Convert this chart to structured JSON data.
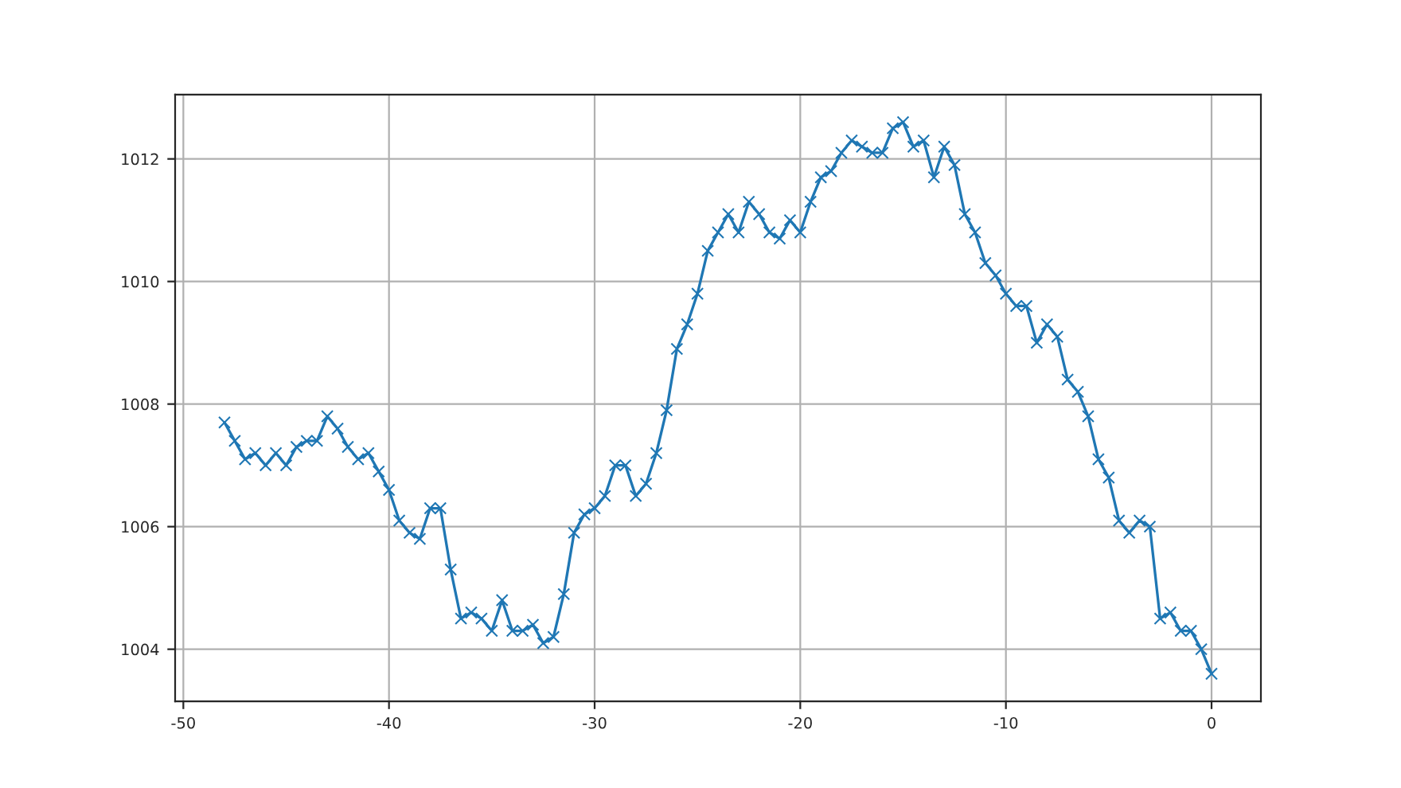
{
  "chart_data": {
    "type": "line",
    "x": [
      -48,
      -47.5,
      -47,
      -46.5,
      -46,
      -45.5,
      -45,
      -44.5,
      -44,
      -43.5,
      -43,
      -42.5,
      -42,
      -41.5,
      -41,
      -40.5,
      -40,
      -39.5,
      -39,
      -38.5,
      -38,
      -37.5,
      -37,
      -36.5,
      -36,
      -35.5,
      -35,
      -34.5,
      -34,
      -33.5,
      -33,
      -32.5,
      -32,
      -31.5,
      -31,
      -30.5,
      -30,
      -29.5,
      -29,
      -28.5,
      -28,
      -27.5,
      -27,
      -26.5,
      -26,
      -25.5,
      -25,
      -24.5,
      -24,
      -23.5,
      -23,
      -22.5,
      -22,
      -21.5,
      -21,
      -20.5,
      -20,
      -19.5,
      -19,
      -18.5,
      -18,
      -17.5,
      -17,
      -16.5,
      -16,
      -15.5,
      -15,
      -14.5,
      -14,
      -13.5,
      -13,
      -12.5,
      -12,
      -11.5,
      -11,
      -10.5,
      -10,
      -9.5,
      -9,
      -8.5,
      -8,
      -7.5,
      -7,
      -6.5,
      -6,
      -5.5,
      -5,
      -4.5,
      -4,
      -3.5,
      -3,
      -2.5,
      -2,
      -1.5,
      -1,
      -0.5,
      0
    ],
    "series": [
      {
        "color": "#1f77b4",
        "values": [
          1007.7,
          1007.4,
          1007.1,
          1007.2,
          1007.0,
          1007.2,
          1007.0,
          1007.3,
          1007.4,
          1007.4,
          1007.8,
          1007.6,
          1007.3,
          1007.1,
          1007.2,
          1006.9,
          1006.6,
          1006.1,
          1005.9,
          1005.8,
          1006.3,
          1006.3,
          1005.3,
          1004.5,
          1004.6,
          1004.5,
          1004.3,
          1004.8,
          1004.3,
          1004.3,
          1004.4,
          1004.1,
          1004.2,
          1004.9,
          1005.9,
          1006.2,
          1006.3,
          1006.5,
          1007.0,
          1007.0,
          1006.5,
          1006.7,
          1007.2,
          1007.9,
          1008.9,
          1009.3,
          1009.8,
          1010.5,
          1010.8,
          1011.1,
          1010.8,
          1011.3,
          1011.1,
          1010.8,
          1010.7,
          1011.0,
          1010.8,
          1011.3,
          1011.7,
          1011.8,
          1012.1,
          1012.3,
          1012.2,
          1012.1,
          1012.1,
          1012.5,
          1012.6,
          1012.2,
          1012.3,
          1011.7,
          1012.2,
          1011.9,
          1011.1,
          1010.8,
          1010.3,
          1010.1,
          1009.8,
          1009.6,
          1009.6,
          1009.0,
          1009.3,
          1009.1,
          1008.4,
          1008.2,
          1007.8,
          1007.1,
          1006.8,
          1006.1,
          1005.9,
          1006.1,
          1006.0,
          1004.5,
          1004.6,
          1004.3,
          1004.3,
          1004.0,
          1003.6
        ]
      }
    ],
    "xlim": [
      -50.4,
      2.4
    ],
    "xticks": [
      -50,
      -40,
      -30,
      -20,
      -10,
      0
    ],
    "ylim": [
      1003.15,
      1013.05
    ],
    "yticks": [
      1004,
      1006,
      1008,
      1010,
      1012
    ],
    "grid": true,
    "marker": "cross",
    "line_style": "solid"
  }
}
